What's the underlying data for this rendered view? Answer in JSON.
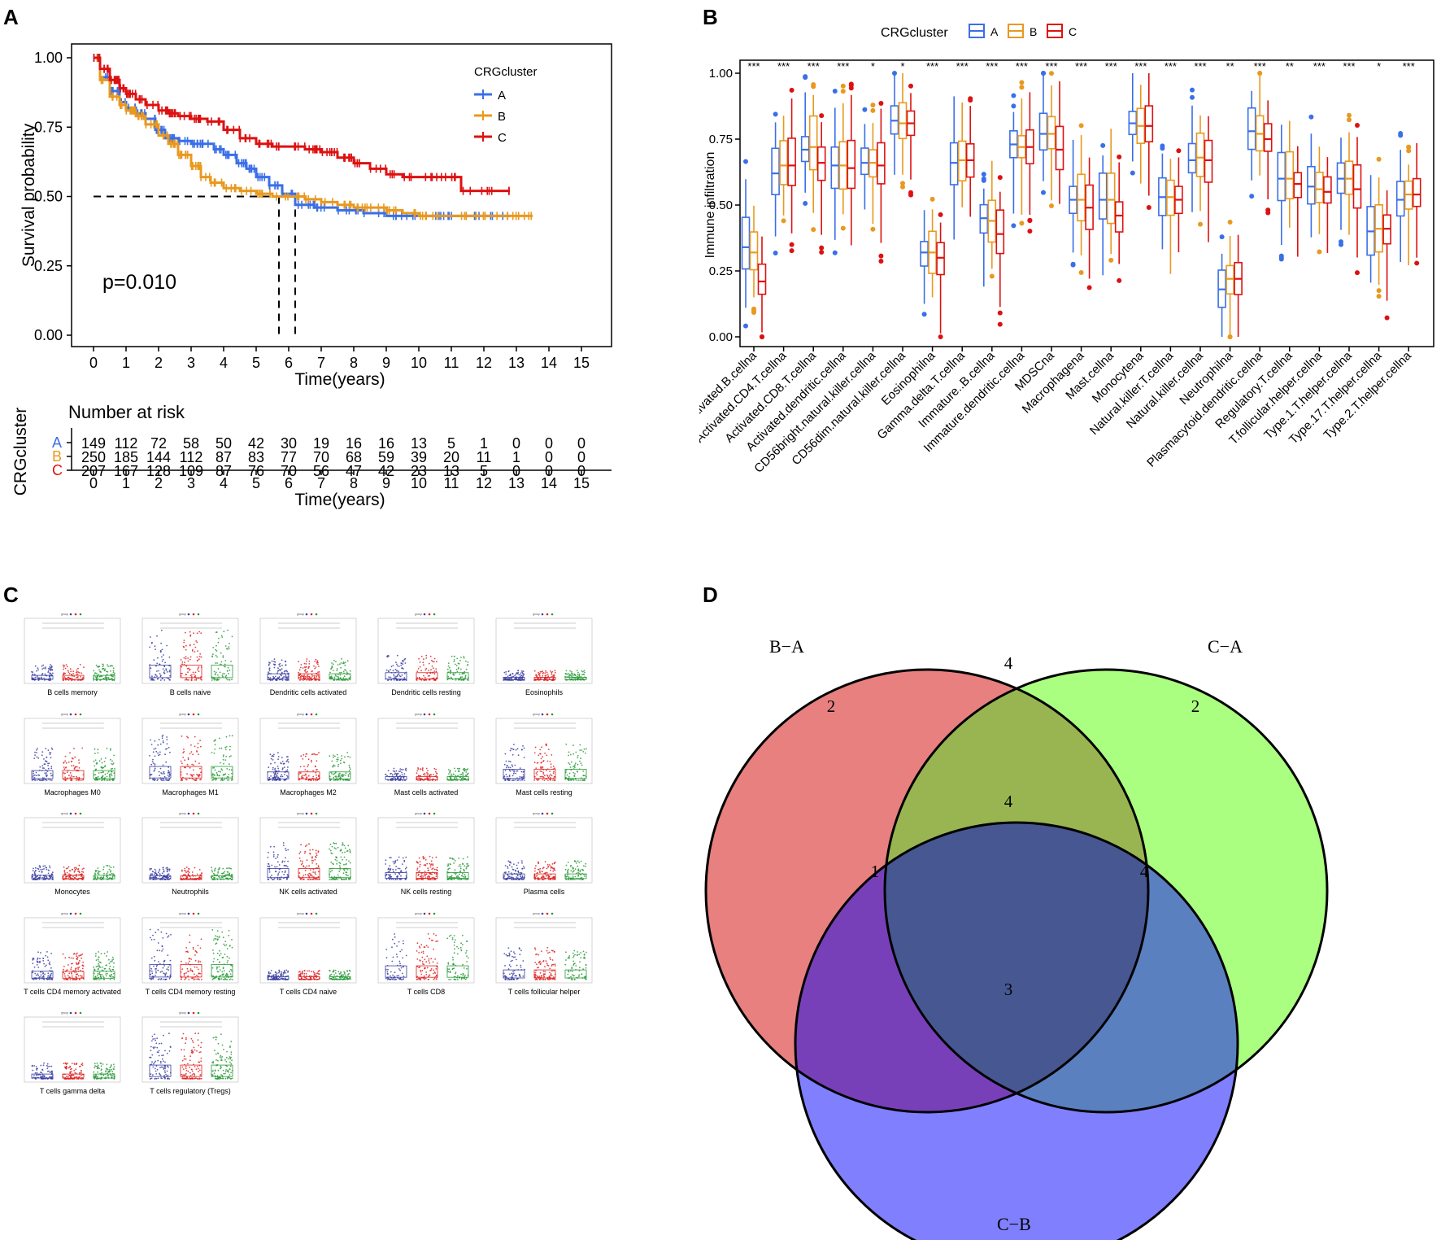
{
  "panels": {
    "a": {
      "letter": "A"
    },
    "b": {
      "letter": "B"
    },
    "c": {
      "letter": "C"
    },
    "d": {
      "letter": "D"
    }
  },
  "colors": {
    "A": "#3a6fe8",
    "B": "#e8991f",
    "C": "#dd1111"
  },
  "chart_data": [
    {
      "id": "survival",
      "type": "line",
      "title": "",
      "xlabel": "Time(years)",
      "ylabel": "Survival probability",
      "xlim": [
        0,
        15
      ],
      "ylim": [
        0,
        1
      ],
      "xticks": [
        "0",
        "1",
        "2",
        "3",
        "4",
        "5",
        "6",
        "7",
        "8",
        "9",
        "10",
        "11",
        "12",
        "13",
        "14",
        "15"
      ],
      "yticks": [
        "0.00",
        "0.25",
        "0.50",
        "0.75",
        "1.00"
      ],
      "legend_title": "CRGcluster",
      "legend_position": "top-right",
      "pvalue": "p=0.010",
      "median_lines": [
        5.7,
        6.2
      ],
      "series": [
        {
          "name": "A",
          "x": [
            0,
            0.2,
            0.5,
            0.8,
            1.0,
            1.3,
            1.6,
            1.9,
            2.2,
            2.6,
            3.0,
            3.3,
            3.7,
            4.0,
            4.4,
            4.7,
            5.0,
            5.4,
            5.8,
            6.2,
            6.8,
            7.5,
            8.3,
            9.0,
            10.0,
            11.0,
            12.0,
            12.8
          ],
          "y": [
            1.0,
            0.93,
            0.88,
            0.84,
            0.82,
            0.8,
            0.78,
            0.74,
            0.71,
            0.7,
            0.69,
            0.69,
            0.67,
            0.65,
            0.62,
            0.6,
            0.57,
            0.54,
            0.51,
            0.47,
            0.46,
            0.45,
            0.44,
            0.43,
            0.43,
            0.43,
            0.43,
            0.43
          ]
        },
        {
          "name": "B",
          "x": [
            0,
            0.2,
            0.5,
            0.8,
            1.0,
            1.3,
            1.6,
            2.0,
            2.3,
            2.6,
            3.0,
            3.3,
            3.6,
            4.0,
            4.5,
            5.0,
            5.5,
            6.0,
            6.5,
            7.0,
            7.5,
            8.0,
            8.5,
            9.0,
            9.5,
            10.0,
            11.0,
            12.0,
            13.0,
            13.5
          ],
          "y": [
            1.0,
            0.92,
            0.86,
            0.83,
            0.81,
            0.79,
            0.76,
            0.72,
            0.69,
            0.65,
            0.61,
            0.57,
            0.55,
            0.53,
            0.52,
            0.51,
            0.5,
            0.5,
            0.49,
            0.48,
            0.47,
            0.46,
            0.46,
            0.45,
            0.44,
            0.43,
            0.43,
            0.43,
            0.43,
            0.43
          ]
        },
        {
          "name": "C",
          "x": [
            0,
            0.2,
            0.5,
            0.8,
            1.0,
            1.3,
            1.6,
            2.0,
            2.3,
            2.6,
            3.0,
            3.5,
            4.0,
            4.5,
            5.0,
            5.5,
            6.0,
            6.5,
            7.0,
            7.5,
            8.0,
            8.5,
            9.0,
            9.5,
            10.0,
            10.5,
            11.0,
            11.3,
            12.0,
            12.8
          ],
          "y": [
            1.0,
            0.96,
            0.92,
            0.89,
            0.87,
            0.85,
            0.83,
            0.81,
            0.8,
            0.79,
            0.78,
            0.77,
            0.74,
            0.71,
            0.69,
            0.68,
            0.68,
            0.67,
            0.66,
            0.64,
            0.62,
            0.6,
            0.58,
            0.57,
            0.57,
            0.57,
            0.57,
            0.52,
            0.52,
            0.52
          ]
        }
      ]
    },
    {
      "id": "risk-table",
      "type": "table",
      "title": "Number at risk",
      "ylabel": "CRGcluster",
      "xlabel": "Time(years)",
      "columns": [
        "0",
        "1",
        "2",
        "3",
        "4",
        "5",
        "6",
        "7",
        "8",
        "9",
        "10",
        "11",
        "12",
        "13",
        "14",
        "15"
      ],
      "rows": [
        {
          "name": "A",
          "values": [
            "149",
            "112",
            "72",
            "58",
            "50",
            "42",
            "30",
            "19",
            "16",
            "16",
            "13",
            "5",
            "1",
            "0",
            "0",
            "0"
          ]
        },
        {
          "name": "B",
          "values": [
            "250",
            "185",
            "144",
            "112",
            "87",
            "83",
            "77",
            "70",
            "68",
            "59",
            "39",
            "20",
            "11",
            "1",
            "0",
            "0"
          ]
        },
        {
          "name": "C",
          "values": [
            "207",
            "167",
            "128",
            "109",
            "87",
            "76",
            "70",
            "56",
            "47",
            "42",
            "23",
            "13",
            "5",
            "0",
            "0",
            "0"
          ]
        }
      ]
    },
    {
      "id": "immune-boxplot",
      "type": "bar",
      "title": "",
      "ylabel": "Immune infiltration",
      "legend_title": "CRGcluster",
      "legend_position": "top",
      "legend": [
        "A",
        "B",
        "C"
      ],
      "ylim": [
        0,
        1
      ],
      "yticks": [
        "0.00",
        "0.25",
        "0.50",
        "0.75",
        "1.00"
      ],
      "categories": [
        "Activated.B.cellna",
        "Activated.CD4.T.cellna",
        "Activated.CD8.T.cellna",
        "Activated.dendritic.cellna",
        "CD56bright.natural.killer.cellna",
        "CD56dim.natural.killer.cellna",
        "Eosinophilna",
        "Gamma.delta.T.cellna",
        "Immature..B.cellna",
        "Immature.dendritic.cellna",
        "MDSCna",
        "Macrophagena",
        "Mast.cellna",
        "Monocytena",
        "Natural.killer.T.cellna",
        "Natural.killer.cellna",
        "Neutrophilna",
        "Plasmacytoid.dendritic.cellna",
        "Regulatory.T.cellna",
        "T.follicular.helper.cellna",
        "Type.1.T.helper.cellna",
        "Type.17.T.helper.cellna",
        "Type.2.T.helper.cellna"
      ],
      "significance": [
        "***",
        "***",
        "***",
        "***",
        "*",
        "*",
        "***",
        "***",
        "***",
        "***",
        "***",
        "***",
        "***",
        "***",
        "***",
        "***",
        "**",
        "***",
        "**",
        "***",
        "***",
        "*",
        "***"
      ],
      "medians": {
        "A": [
          0.34,
          0.62,
          0.71,
          0.65,
          0.66,
          0.82,
          0.32,
          0.66,
          0.45,
          0.73,
          0.77,
          0.52,
          0.52,
          0.81,
          0.53,
          0.67,
          0.18,
          0.78,
          0.6,
          0.57,
          0.6,
          0.4,
          0.52
        ],
        "B": [
          0.32,
          0.65,
          0.72,
          0.65,
          0.66,
          0.81,
          0.32,
          0.67,
          0.44,
          0.72,
          0.77,
          0.52,
          0.52,
          0.8,
          0.53,
          0.68,
          0.22,
          0.77,
          0.6,
          0.56,
          0.6,
          0.41,
          0.54
        ],
        "C": [
          0.21,
          0.65,
          0.66,
          0.64,
          0.65,
          0.81,
          0.3,
          0.67,
          0.39,
          0.72,
          0.71,
          0.49,
          0.46,
          0.8,
          0.52,
          0.67,
          0.22,
          0.75,
          0.58,
          0.55,
          0.56,
          0.41,
          0.54
        ]
      }
    },
    {
      "id": "venn",
      "type": "table",
      "title": "",
      "sets": [
        "B−A",
        "C−A",
        "C−B"
      ],
      "regions": [
        {
          "sets": [
            "B−A"
          ],
          "count": "2"
        },
        {
          "sets": [
            "C−A"
          ],
          "count": "2"
        },
        {
          "sets": [
            "C−B"
          ],
          "count": "3"
        },
        {
          "sets": [
            "B−A",
            "C−A"
          ],
          "count": "4"
        },
        {
          "sets": [
            "B−A",
            "C−B"
          ],
          "count": "1"
        },
        {
          "sets": [
            "C−A",
            "C−B"
          ],
          "count": "4"
        },
        {
          "sets": [
            "B−A",
            "C−A",
            "C−B"
          ],
          "count": "4"
        }
      ],
      "colors": {
        "B−A": "#e88080",
        "C−A": "#aaff80",
        "C−B": "#8080ff"
      }
    },
    {
      "id": "cibersort-grid",
      "type": "scatter",
      "title": "",
      "groups": [
        "A",
        "B",
        "C"
      ],
      "xlabel": "group",
      "panels": [
        "B cells memory",
        "B cells naive",
        "Dendritic cells activated",
        "Dendritic cells resting",
        "Eosinophils",
        "Macrophages M0",
        "Macrophages M1",
        "Macrophages M2",
        "Mast cells activated",
        "Mast cells resting",
        "Monocytes",
        "Neutrophils",
        "NK cells activated",
        "NK cells resting",
        "Plasma cells",
        "T cells CD4 memory activated",
        "T cells CD4 memory resting",
        "T cells CD4 naive",
        "T cells CD8",
        "T cells follicular helper",
        "T cells gamma delta",
        "T cells regulatory (Tregs)"
      ],
      "levels": [
        0.12,
        0.5,
        0.18,
        0.22,
        0.05,
        0.3,
        0.45,
        0.25,
        0.08,
        0.35,
        0.1,
        0.08,
        0.35,
        0.2,
        0.15,
        0.25,
        0.5,
        0.05,
        0.45,
        0.3,
        0.12,
        0.45
      ]
    }
  ]
}
